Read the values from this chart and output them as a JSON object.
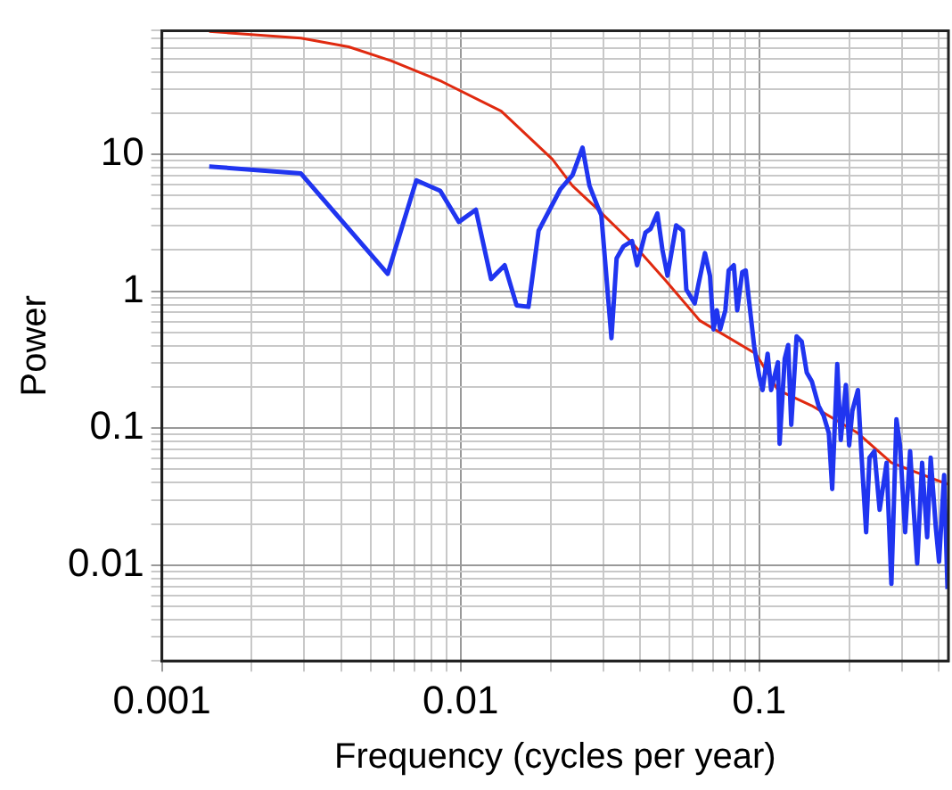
{
  "chart_data": {
    "type": "line",
    "xlabel": "Frequency (cycles per year)",
    "ylabel": "Power",
    "log": "xy",
    "grid": true,
    "legend": false,
    "marker": "none",
    "line_style": "solid",
    "xlim": [
      0.001,
      0.43
    ],
    "ylim": [
      0.002,
      80
    ],
    "xticks": [
      0.001,
      {
        "value": 0.002,
        "label": null
      },
      {
        "value": 0.003,
        "label": null
      },
      {
        "value": 0.004,
        "label": null
      },
      {
        "value": 0.005,
        "label": null
      },
      {
        "value": 0.006,
        "label": null
      },
      {
        "value": 0.007,
        "label": null
      },
      {
        "value": 0.008,
        "label": null
      },
      {
        "value": 0.009,
        "label": null
      },
      0.01,
      {
        "value": 0.02,
        "label": null
      },
      {
        "value": 0.03,
        "label": null
      },
      {
        "value": 0.04,
        "label": null
      },
      {
        "value": 0.05,
        "label": null
      },
      {
        "value": 0.06,
        "label": null
      },
      {
        "value": 0.07,
        "label": null
      },
      {
        "value": 0.08,
        "label": null
      },
      {
        "value": 0.09,
        "label": null
      },
      0.1,
      {
        "value": 0.2,
        "label": null
      },
      {
        "value": 0.3,
        "label": null
      },
      {
        "value": 0.4,
        "label": null
      }
    ],
    "yticks": [
      {
        "value": 0.002,
        "label": null
      },
      {
        "value": 0.003,
        "label": null
      },
      {
        "value": 0.004,
        "label": null
      },
      {
        "value": 0.005,
        "label": null
      },
      {
        "value": 0.006,
        "label": null
      },
      {
        "value": 0.007,
        "label": null
      },
      {
        "value": 0.008,
        "label": null
      },
      {
        "value": 0.009,
        "label": null
      },
      0.01,
      {
        "value": 0.02,
        "label": null
      },
      {
        "value": 0.03,
        "label": null
      },
      {
        "value": 0.04,
        "label": null
      },
      {
        "value": 0.05,
        "label": null
      },
      {
        "value": 0.06,
        "label": null
      },
      {
        "value": 0.07,
        "label": null
      },
      {
        "value": 0.08,
        "label": null
      },
      {
        "value": 0.09,
        "label": null
      },
      0.1,
      {
        "value": 0.2,
        "label": null
      },
      {
        "value": 0.3,
        "label": null
      },
      {
        "value": 0.4,
        "label": null
      },
      {
        "value": 0.5,
        "label": null
      },
      {
        "value": 0.6,
        "label": null
      },
      {
        "value": 0.7,
        "label": null
      },
      {
        "value": 0.8,
        "label": null
      },
      {
        "value": 0.9,
        "label": null
      },
      1,
      {
        "value": 2,
        "label": null
      },
      {
        "value": 3,
        "label": null
      },
      {
        "value": 4,
        "label": null
      },
      {
        "value": 5,
        "label": null
      },
      {
        "value": 6,
        "label": null
      },
      {
        "value": 7,
        "label": null
      },
      {
        "value": 8,
        "label": null
      },
      {
        "value": 9,
        "label": null
      },
      10,
      {
        "value": 20,
        "label": null
      },
      {
        "value": 30,
        "label": null
      },
      {
        "value": 40,
        "label": null
      },
      {
        "value": 50,
        "label": null
      },
      {
        "value": 60,
        "label": null
      },
      {
        "value": 70,
        "label": null
      },
      {
        "value": 80,
        "label": null
      }
    ],
    "series": [
      {
        "color": "#2035f0",
        "x": [
          0.00144,
          0.00292,
          0.0057,
          0.00711,
          0.00855,
          0.00987,
          0.01125,
          0.01265,
          0.01405,
          0.0154,
          0.01688,
          0.01825,
          0.0216,
          0.0237,
          0.0256,
          0.027,
          0.0289,
          0.0296,
          0.032,
          0.0333,
          0.0351,
          0.0375,
          0.039,
          0.0416,
          0.0433,
          0.0456,
          0.0474,
          0.0493,
          0.0527,
          0.0555,
          0.057,
          0.0608,
          0.0624,
          0.0658,
          0.0684,
          0.0703,
          0.0721,
          0.074,
          0.077,
          0.079,
          0.0822,
          0.0844,
          0.0877,
          0.0901,
          0.0925,
          0.0962,
          0.1,
          0.1026,
          0.1067,
          0.1096,
          0.1155,
          0.117,
          0.1217,
          0.125,
          0.128,
          0.1334,
          0.1387,
          0.1443,
          0.15,
          0.158,
          0.1644,
          0.171,
          0.1755,
          0.1825,
          0.1875,
          0.195,
          0.2,
          0.205,
          0.214,
          0.219,
          0.228,
          0.234,
          0.243,
          0.253,
          0.267,
          0.277,
          0.288,
          0.296,
          0.308,
          0.32,
          0.329,
          0.338,
          0.351,
          0.365,
          0.375,
          0.39,
          0.4,
          0.416,
          0.427
        ],
        "values": [
          8.15,
          7.25,
          1.34,
          6.46,
          5.42,
          3.21,
          3.94,
          1.23,
          1.55,
          0.79,
          0.77,
          2.77,
          5.58,
          7.05,
          11.2,
          5.92,
          4.05,
          3.6,
          0.455,
          1.74,
          2.13,
          2.33,
          1.55,
          2.69,
          2.86,
          3.71,
          2.01,
          1.3,
          3.03,
          2.77,
          1.03,
          0.815,
          1.09,
          1.9,
          1.3,
          0.527,
          0.726,
          0.527,
          0.726,
          1.42,
          1.55,
          0.726,
          1.38,
          1.42,
          0.84,
          0.394,
          0.24,
          0.19,
          0.35,
          0.19,
          0.303,
          0.077,
          0.321,
          0.405,
          0.106,
          0.469,
          0.43,
          0.254,
          0.22,
          0.146,
          0.123,
          0.092,
          0.036,
          0.294,
          0.082,
          0.207,
          0.075,
          0.134,
          0.19,
          0.075,
          0.0174,
          0.061,
          0.068,
          0.0254,
          0.056,
          0.0073,
          0.116,
          0.075,
          0.0174,
          0.068,
          0.0254,
          0.0103,
          0.056,
          0.016,
          0.061,
          0.019,
          0.0106,
          0.0455,
          0.0067
        ]
      },
      {
        "color": "#e02a10",
        "x": [
          0.00144,
          0.00292,
          0.00422,
          0.00585,
          0.00866,
          0.01368,
          0.0203,
          0.0237,
          0.0285,
          0.0375,
          0.0487,
          0.0633,
          0.0974,
          0.1155,
          0.15,
          0.214,
          0.277,
          0.427
        ],
        "values": [
          79,
          70.5,
          61,
          48.3,
          34,
          20.7,
          9.2,
          5.9,
          4.05,
          2.26,
          1.19,
          0.61,
          0.35,
          0.19,
          0.146,
          0.092,
          0.056,
          0.039
        ]
      }
    ]
  }
}
